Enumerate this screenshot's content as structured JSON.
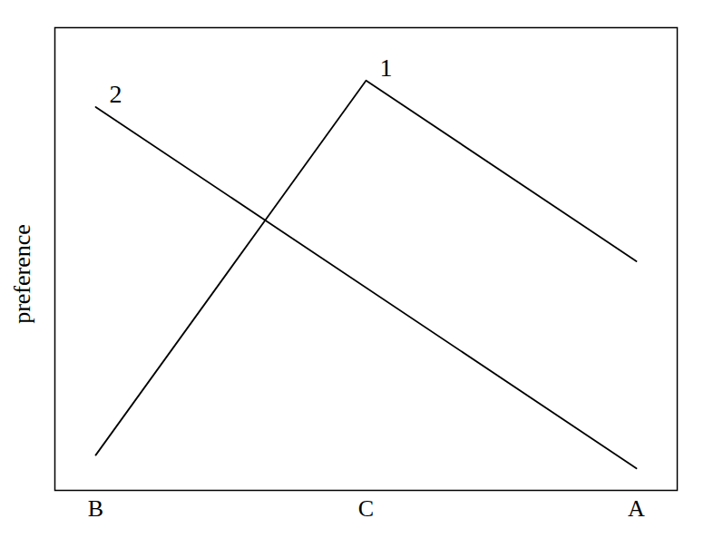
{
  "chart_data": {
    "type": "line",
    "categories": [
      "B",
      "C",
      "A"
    ],
    "series": [
      {
        "name": "1",
        "color": "#000000",
        "x": [
          "B",
          "C",
          "A"
        ],
        "values": [
          0.08,
          0.93,
          0.52
        ]
      },
      {
        "name": "2",
        "color": "#000000",
        "x": [
          "B",
          "A"
        ],
        "values": [
          0.87,
          0.05
        ]
      }
    ],
    "ylabel": "preference",
    "ylim": [
      0,
      1.05
    ],
    "yticks": [],
    "tick_labels": "x",
    "grid": false
  }
}
